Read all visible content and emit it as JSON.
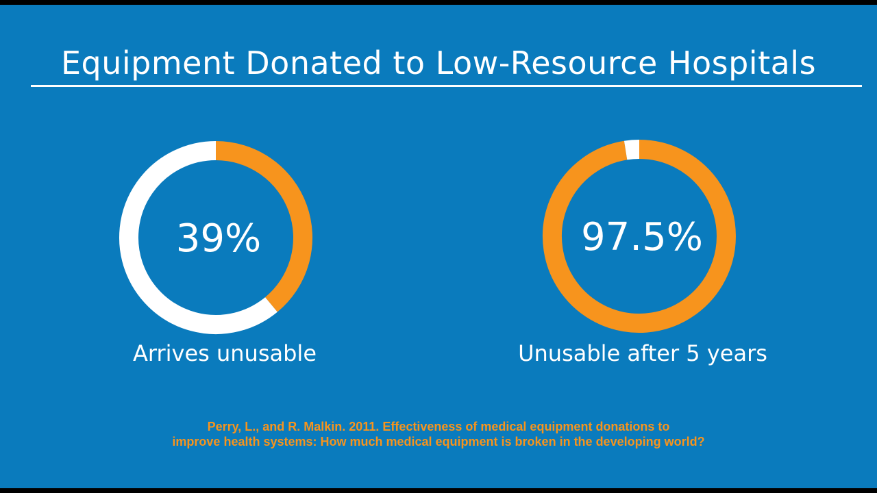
{
  "slide": {
    "title": "Equipment Donated to Low-Resource Hospitals",
    "citation_line1": "Perry, L., and R. Malkin. 2011. Effectiveness of medical equipment donations to",
    "citation_line2": "improve health systems: How much medical equipment is broken in the developing world?"
  },
  "colors": {
    "background": "#0A7BBD",
    "accent": "#F7941D",
    "remainder": "#FFFFFF",
    "citation": "#F7941D"
  },
  "chart_data": [
    {
      "type": "pie",
      "style": "donut",
      "value_label": "39%",
      "caption": "Arrives unusable",
      "slices": [
        {
          "label": "Arrives unusable",
          "value": 39,
          "color": "#F7941D"
        },
        {
          "label": "",
          "value": 61,
          "color": "#FFFFFF"
        }
      ]
    },
    {
      "type": "pie",
      "style": "donut",
      "value_label": "97.5%",
      "caption": "Unusable after 5 years",
      "slices": [
        {
          "label": "Unusable after 5 years",
          "value": 97.5,
          "color": "#F7941D"
        },
        {
          "label": "",
          "value": 2.5,
          "color": "#FFFFFF"
        }
      ]
    }
  ]
}
